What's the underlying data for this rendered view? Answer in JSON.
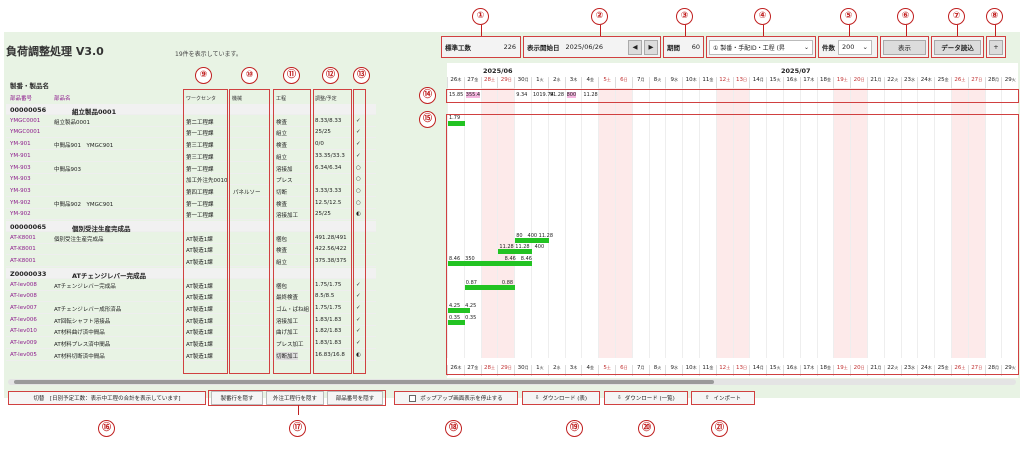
{
  "app": {
    "title": "負荷調整処理 V3.0",
    "count_text": "19件を表示しています。"
  },
  "toolbar": {
    "std_label": "標準工数",
    "std_value": "226",
    "start_label": "表示開始日",
    "start_value": "2025/06/26",
    "period_label": "期間",
    "period_value": "60",
    "sort_value": "① 製番・手配ID・工程 (昇",
    "count_label": "件数",
    "count_value": "200",
    "show_label": "表示",
    "load_label": "データ読込",
    "plus_label": "+"
  },
  "markers": [
    "①",
    "②",
    "③",
    "④",
    "⑤",
    "⑥",
    "⑦",
    "⑧",
    "⑨",
    "⑩",
    "⑪",
    "⑫",
    "⑬",
    "⑭",
    "⑮",
    "⑯",
    "⑰",
    "⑱",
    "⑲",
    "⑳",
    "㉑"
  ],
  "table": {
    "header_title": "製番・製品名",
    "col_item_no": "部品番号",
    "col_item_name": "部品名",
    "col_wc": "ワークセンタ",
    "col_machine": "機械",
    "col_process": "工程",
    "col_plan": "調整/予定"
  },
  "rows": [
    {
      "group": true,
      "id": "00000056",
      "name": "組立製品0001"
    },
    {
      "no": "YMGC0001",
      "name": "組立製品0001",
      "wc": "第二工程課",
      "mc": "",
      "proc": "検査",
      "plan": "8.33/8.33",
      "st": "✓"
    },
    {
      "no": "YMGC0001",
      "name": "",
      "wc": "第一工程課",
      "mc": "",
      "proc": "組立",
      "plan": "25/25",
      "st": "✓"
    },
    {
      "no": "YM-901",
      "name": "中間品901　YMGC901",
      "wc": "第三工程課",
      "mc": "",
      "proc": "検査",
      "plan": "0/0",
      "st": "✓"
    },
    {
      "no": "YM-901",
      "name": "",
      "wc": "第三工程課",
      "mc": "",
      "proc": "組立",
      "plan": "33.35/33.3",
      "st": "✓"
    },
    {
      "no": "YM-903",
      "name": "中間品903",
      "wc": "第一工程課",
      "mc": "",
      "proc": "溶接加",
      "plan": "6.34/6.34",
      "st": "○"
    },
    {
      "no": "YM-903",
      "name": "",
      "wc": "加工外注先0010",
      "mc": "",
      "proc": "プレス",
      "plan": "",
      "st": "○"
    },
    {
      "no": "YM-903",
      "name": "",
      "wc": "第四工程課",
      "mc": "パネルソー",
      "proc": "切断",
      "plan": "3.33/3.33",
      "st": "○"
    },
    {
      "no": "YM-902",
      "name": "中間品902　YMGC901",
      "wc": "第一工程課",
      "mc": "",
      "proc": "検査",
      "plan": "12.5/12.5",
      "st": "○"
    },
    {
      "no": "YM-902",
      "name": "",
      "wc": "第一工程課",
      "mc": "",
      "proc": "溶接加工",
      "plan": "25/25",
      "st": "◐"
    },
    {
      "group": true,
      "id": "00000065",
      "name": "個別受注生産完成品"
    },
    {
      "no": "AT-K8001",
      "name": "個別受注生産完成品",
      "wc": "AT製造1課",
      "mc": "",
      "proc": "梱包",
      "plan": "491.28/491",
      "st": ""
    },
    {
      "no": "AT-K8001",
      "name": "",
      "wc": "AT製造1課",
      "mc": "",
      "proc": "検査",
      "plan": "422.56/422",
      "st": ""
    },
    {
      "no": "AT-K8001",
      "name": "",
      "wc": "AT製造1課",
      "mc": "",
      "proc": "組立",
      "plan": "375.38/375",
      "st": ""
    },
    {
      "group": true,
      "id": "Z0000033",
      "name": "ATチェンジレバー完成品"
    },
    {
      "no": "AT-lev008",
      "name": "ATチェンジレバー完成品",
      "wc": "AT製造1課",
      "mc": "",
      "proc": "梱包",
      "plan": "1.75/1.75",
      "st": "✓"
    },
    {
      "no": "AT-lev008",
      "name": "",
      "wc": "AT製造1課",
      "mc": "",
      "proc": "最終検査",
      "plan": "8.5/8.5",
      "st": "✓"
    },
    {
      "no": "AT-lev007",
      "name": "ATチェンジレバー成形済品",
      "wc": "AT製造1課",
      "mc": "",
      "proc": "ゴム・ばね組",
      "plan": "1.75/1.75",
      "st": "✓"
    },
    {
      "no": "AT-lev006",
      "name": "AT回転シャフト溶接品",
      "wc": "AT製造1課",
      "mc": "",
      "proc": "溶接加工",
      "plan": "1.83/1.83",
      "st": "✓"
    },
    {
      "no": "AT-lev010",
      "name": "AT材料曲げ済中間品",
      "wc": "AT製造1課",
      "mc": "",
      "proc": "曲げ加工",
      "plan": "1.82/1.83",
      "st": "✓"
    },
    {
      "no": "AT-lev009",
      "name": "AT材料プレス済中間品",
      "wc": "AT製造1課",
      "mc": "",
      "proc": "プレス加工",
      "plan": "1.83/1.83",
      "st": "✓"
    },
    {
      "no": "AT-lev005",
      "name": "AT材料切断済中間品",
      "wc": "AT製造1課",
      "mc": "",
      "proc": "切断加工",
      "plan": "16.83/16.8",
      "st": "◐"
    }
  ],
  "gantt": {
    "month1": "2025/06",
    "month2": "2025/07",
    "days": [
      "26",
      "27",
      "28",
      "29",
      "30",
      "1",
      "2",
      "3",
      "4",
      "5",
      "6",
      "7",
      "8",
      "9",
      "10",
      "11",
      "12",
      "13",
      "14",
      "15",
      "16",
      "17",
      "18",
      "19",
      "20",
      "21",
      "22",
      "23",
      "24",
      "25",
      "26",
      "27",
      "28",
      "29"
    ],
    "weekdays": [
      "木",
      "金",
      "土",
      "日",
      "月",
      "火",
      "水",
      "木",
      "金",
      "土",
      "日",
      "月",
      "火",
      "水",
      "木",
      "金",
      "土",
      "日",
      "月",
      "火",
      "水",
      "木",
      "金",
      "土",
      "日",
      "月",
      "火",
      "水",
      "木",
      "金",
      "土",
      "日",
      "月",
      "火"
    ],
    "load": [
      "15.85",
      "355.4",
      "",
      "",
      "9.34",
      "1019.74",
      "91.28",
      "800",
      "11.28"
    ],
    "bars": [
      {
        "row": 1,
        "start": 0,
        "len": 1,
        "label": "1.79"
      },
      {
        "row": 11,
        "start": 4,
        "len": 2,
        "label": "80　400 11.28"
      },
      {
        "row": 12,
        "start": 3,
        "len": 2,
        "label": "11.28 11.28　400"
      },
      {
        "row": 13,
        "start": 0,
        "len": 5,
        "label": "8.46　350　　　　　　8.46　8.46"
      },
      {
        "row": 15,
        "start": 1,
        "len": 3,
        "label": "0.87　　　　　0.88"
      },
      {
        "row": 17,
        "start": 0,
        "len": 1.3,
        "label": "4.25　4.25"
      },
      {
        "row": 18,
        "start": 0,
        "len": 1,
        "label": "0.35　0.35"
      }
    ]
  },
  "footer": {
    "f1": "切替　[日別予定工数：表示中工程の合計を表示しています]",
    "f2": "製番行を隠す",
    "f3": "外注工程行を隠す",
    "f4": "部品番号を隠す",
    "f5": "ポップアップ画面表示を停止する",
    "f6": "ダウンロード (表)",
    "f7": "ダウンロード (一覧)",
    "f8": "インポート"
  }
}
